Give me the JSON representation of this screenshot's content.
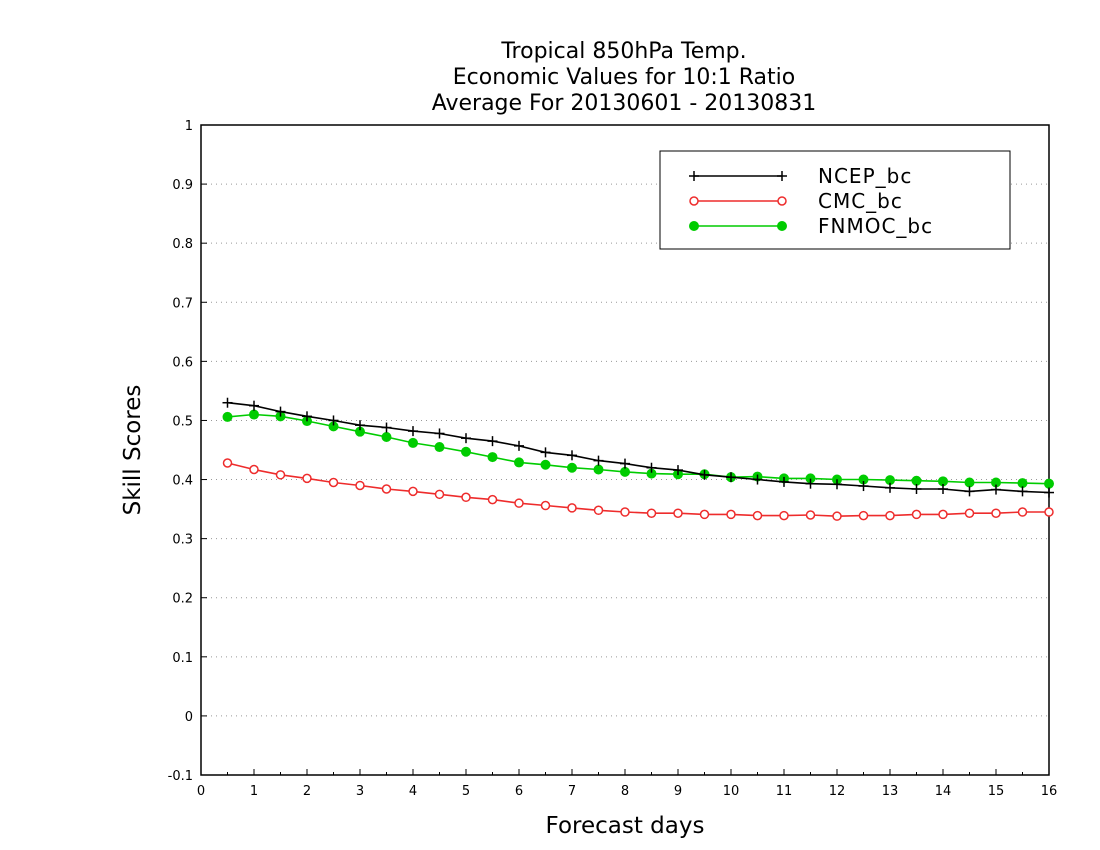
{
  "chart_data": {
    "type": "line",
    "title_lines": [
      "Tropical 850hPa Temp.",
      "Economic Values for 10:1 Ratio",
      "Average For 20130601 - 20130831"
    ],
    "xlabel": "Forecast days",
    "ylabel": "Skill Scores",
    "xlim": [
      0,
      16
    ],
    "ylim": [
      -0.1,
      1
    ],
    "x_ticks": [
      0,
      1,
      2,
      3,
      4,
      5,
      6,
      7,
      8,
      9,
      10,
      11,
      12,
      13,
      14,
      15,
      16
    ],
    "x_tick_labels": [
      "0",
      "1",
      "2",
      "3",
      "4",
      "5",
      "6",
      "7",
      "8",
      "9",
      "10",
      "11",
      "12",
      "13",
      "14",
      "15",
      "16"
    ],
    "y_ticks": [
      -0.1,
      0,
      0.1,
      0.2,
      0.3,
      0.4,
      0.5,
      0.6,
      0.7,
      0.8,
      0.9,
      1
    ],
    "y_tick_labels": [
      "-0.1",
      "0",
      "0.1",
      "0.2",
      "0.3",
      "0.4",
      "0.5",
      "0.6",
      "0.7",
      "0.8",
      "0.9",
      "1"
    ],
    "grid": "horizontal dotted",
    "legend_position": "top-right",
    "x": [
      0.5,
      1,
      1.5,
      2,
      2.5,
      3,
      3.5,
      4,
      4.5,
      5,
      5.5,
      6,
      6.5,
      7,
      7.5,
      8,
      8.5,
      9,
      9.5,
      10,
      10.5,
      11,
      11.5,
      12,
      12.5,
      13,
      13.5,
      14,
      14.5,
      15,
      15.5,
      16
    ],
    "series": [
      {
        "name": "NCEP_bc",
        "color": "#000000",
        "marker": "plus",
        "values": [
          0.53,
          0.525,
          0.515,
          0.507,
          0.5,
          0.492,
          0.488,
          0.482,
          0.478,
          0.47,
          0.465,
          0.457,
          0.446,
          0.441,
          0.432,
          0.427,
          0.42,
          0.416,
          0.408,
          0.404,
          0.4,
          0.396,
          0.393,
          0.392,
          0.389,
          0.386,
          0.384,
          0.384,
          0.38,
          0.383,
          0.38,
          0.378
        ]
      },
      {
        "name": "CMC_bc",
        "color": "#ee2c2c",
        "marker": "open-circle",
        "values": [
          0.428,
          0.417,
          0.408,
          0.402,
          0.395,
          0.39,
          0.384,
          0.38,
          0.375,
          0.37,
          0.366,
          0.36,
          0.356,
          0.352,
          0.348,
          0.345,
          0.343,
          0.343,
          0.341,
          0.341,
          0.339,
          0.339,
          0.34,
          0.338,
          0.339,
          0.339,
          0.341,
          0.341,
          0.343,
          0.343,
          0.345,
          0.345
        ]
      },
      {
        "name": "FNMOC_bc",
        "color": "#00cc00",
        "marker": "filled-circle",
        "values": [
          0.506,
          0.51,
          0.507,
          0.499,
          0.49,
          0.481,
          0.472,
          0.462,
          0.455,
          0.447,
          0.438,
          0.429,
          0.425,
          0.42,
          0.417,
          0.413,
          0.41,
          0.409,
          0.409,
          0.404,
          0.405,
          0.402,
          0.402,
          0.4,
          0.4,
          0.399,
          0.398,
          0.397,
          0.395,
          0.395,
          0.394,
          0.393
        ]
      }
    ]
  }
}
